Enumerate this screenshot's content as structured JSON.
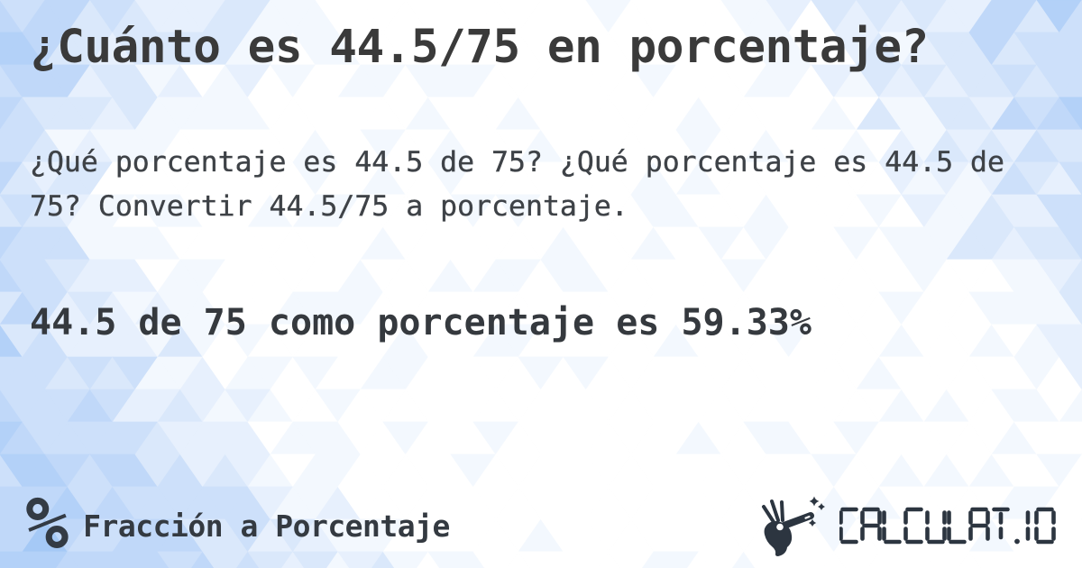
{
  "card": {
    "title": "¿Cuánto es 44.5/75 en porcentaje?",
    "description": "¿Qué porcentaje es 44.5 de 75? ¿Qué porcentaje es 44.5 de 75? Convertir 44.5/75 a porcentaje.",
    "answer": "44.5 de 75 como porcentaje es 59.33%"
  },
  "footer": {
    "category_glyph": "%",
    "category_icon": "percent-icon",
    "category_label": "Fracción a Porcentaje",
    "brand": {
      "icon": "magic-wand-hand-icon",
      "text": "CALCULAT.IO"
    }
  },
  "colors": {
    "title_text": "#3a3a3a",
    "body_text": "#3e4247",
    "answer_text": "#35393e",
    "footer_text": "#343a41",
    "brand_dark": "#2c3540",
    "background_base": "#bcd6f9",
    "background_palette": [
      "#a5c9f6",
      "#b3d1f8",
      "#c0d8f9",
      "#cde0fa",
      "#dae8fb",
      "#e7f0fd",
      "#f3f8fe",
      "#ffffff"
    ]
  }
}
